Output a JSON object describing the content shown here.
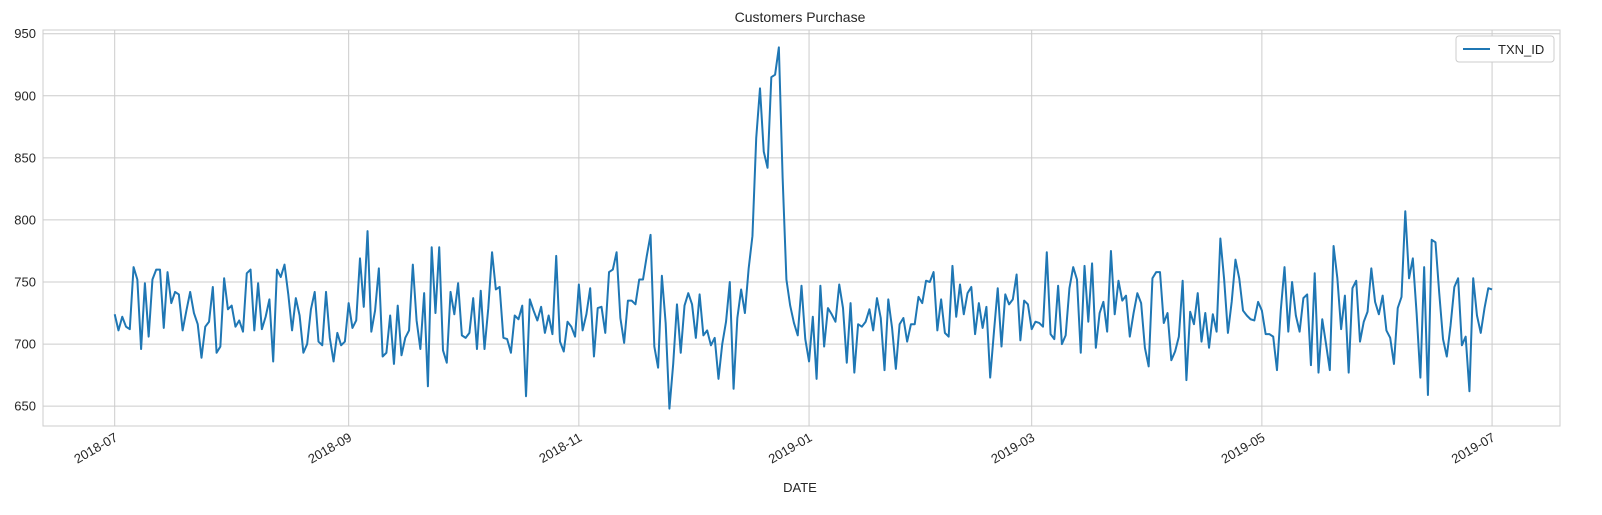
{
  "chart_data": {
    "type": "line",
    "title": "Customers Purchase",
    "xlabel": "DATE",
    "ylabel": "",
    "x_start": "2018-07-01",
    "x_end": "2019-06-30",
    "xlim": [
      "2018-06-12",
      "2019-07-19"
    ],
    "ylim": [
      634,
      953
    ],
    "grid": true,
    "legend_position": "top-right",
    "x_ticks": [
      "2018-07",
      "2018-09",
      "2018-11",
      "2019-01",
      "2019-03",
      "2019-05",
      "2019-07"
    ],
    "y_ticks": [
      650,
      700,
      750,
      800,
      850,
      900,
      950
    ],
    "series": [
      {
        "name": "TXN_ID",
        "color": "#1f77b4",
        "values": [
          724,
          711,
          722,
          714,
          712,
          762,
          752,
          696,
          749,
          706,
          752,
          760,
          760,
          713,
          758,
          733,
          742,
          740,
          711,
          727,
          742,
          725,
          716,
          689,
          714,
          718,
          746,
          693,
          698,
          753,
          728,
          731,
          714,
          719,
          710,
          757,
          760,
          711,
          749,
          712,
          722,
          736,
          686,
          760,
          754,
          764,
          740,
          711,
          737,
          723,
          693,
          700,
          728,
          742,
          702,
          699,
          742,
          705,
          686,
          709,
          699,
          702,
          733,
          713,
          719,
          769,
          730,
          791,
          710,
          727,
          761,
          690,
          693,
          723,
          684,
          731,
          691,
          705,
          711,
          764,
          719,
          696,
          741,
          666,
          778,
          725,
          778,
          695,
          685,
          742,
          724,
          749,
          707,
          705,
          709,
          737,
          696,
          743,
          696,
          729,
          774,
          744,
          746,
          705,
          704,
          693,
          723,
          720,
          731,
          658,
          736,
          727,
          719,
          730,
          709,
          723,
          708,
          771,
          702,
          694,
          718,
          714,
          706,
          748,
          711,
          724,
          745,
          690,
          729,
          730,
          709,
          758,
          760,
          774,
          721,
          701,
          735,
          735,
          732,
          752,
          752,
          771,
          788,
          698,
          681,
          755,
          717,
          648,
          684,
          732,
          693,
          731,
          741,
          732,
          705,
          740,
          707,
          711,
          699,
          705,
          672,
          700,
          718,
          750,
          664,
          721,
          744,
          725,
          761,
          787,
          866,
          906,
          855,
          842,
          915,
          917,
          939,
          834,
          752,
          731,
          717,
          707,
          747,
          704,
          686,
          722,
          672,
          747,
          698,
          729,
          724,
          718,
          748,
          729,
          685,
          733,
          677,
          716,
          714,
          718,
          728,
          711,
          737,
          721,
          679,
          736,
          713,
          680,
          716,
          721,
          702,
          716,
          716,
          738,
          733,
          751,
          750,
          758,
          711,
          736,
          709,
          706,
          763,
          722,
          748,
          724,
          741,
          746,
          708,
          733,
          713,
          730,
          673,
          710,
          745,
          698,
          740,
          732,
          736,
          756,
          703,
          735,
          732,
          712,
          718,
          717,
          714,
          774,
          708,
          704,
          747,
          700,
          707,
          745,
          762,
          752,
          693,
          763,
          718,
          765,
          697,
          725,
          734,
          710,
          775,
          724,
          751,
          735,
          739,
          706,
          725,
          741,
          733,
          697,
          682,
          753,
          758,
          758,
          717,
          725,
          687,
          694,
          706,
          751,
          671,
          726,
          716,
          741,
          702,
          725,
          697,
          724,
          710,
          785,
          752,
          709,
          734,
          768,
          753,
          727,
          723,
          720,
          719,
          734,
          727,
          708,
          708,
          706,
          679,
          727,
          762,
          710,
          750,
          723,
          710,
          737,
          740,
          683,
          757,
          677,
          720,
          700,
          679,
          779,
          753,
          712,
          739,
          677,
          745,
          751,
          702,
          718,
          726,
          761,
          734,
          724,
          739,
          711,
          705,
          684,
          729,
          738,
          807,
          753,
          769,
          725,
          673,
          762,
          659,
          784,
          782,
          741,
          704,
          690,
          715,
          746,
          753,
          699,
          706,
          662,
          753,
          723,
          709,
          729,
          745,
          744
        ]
      }
    ]
  }
}
